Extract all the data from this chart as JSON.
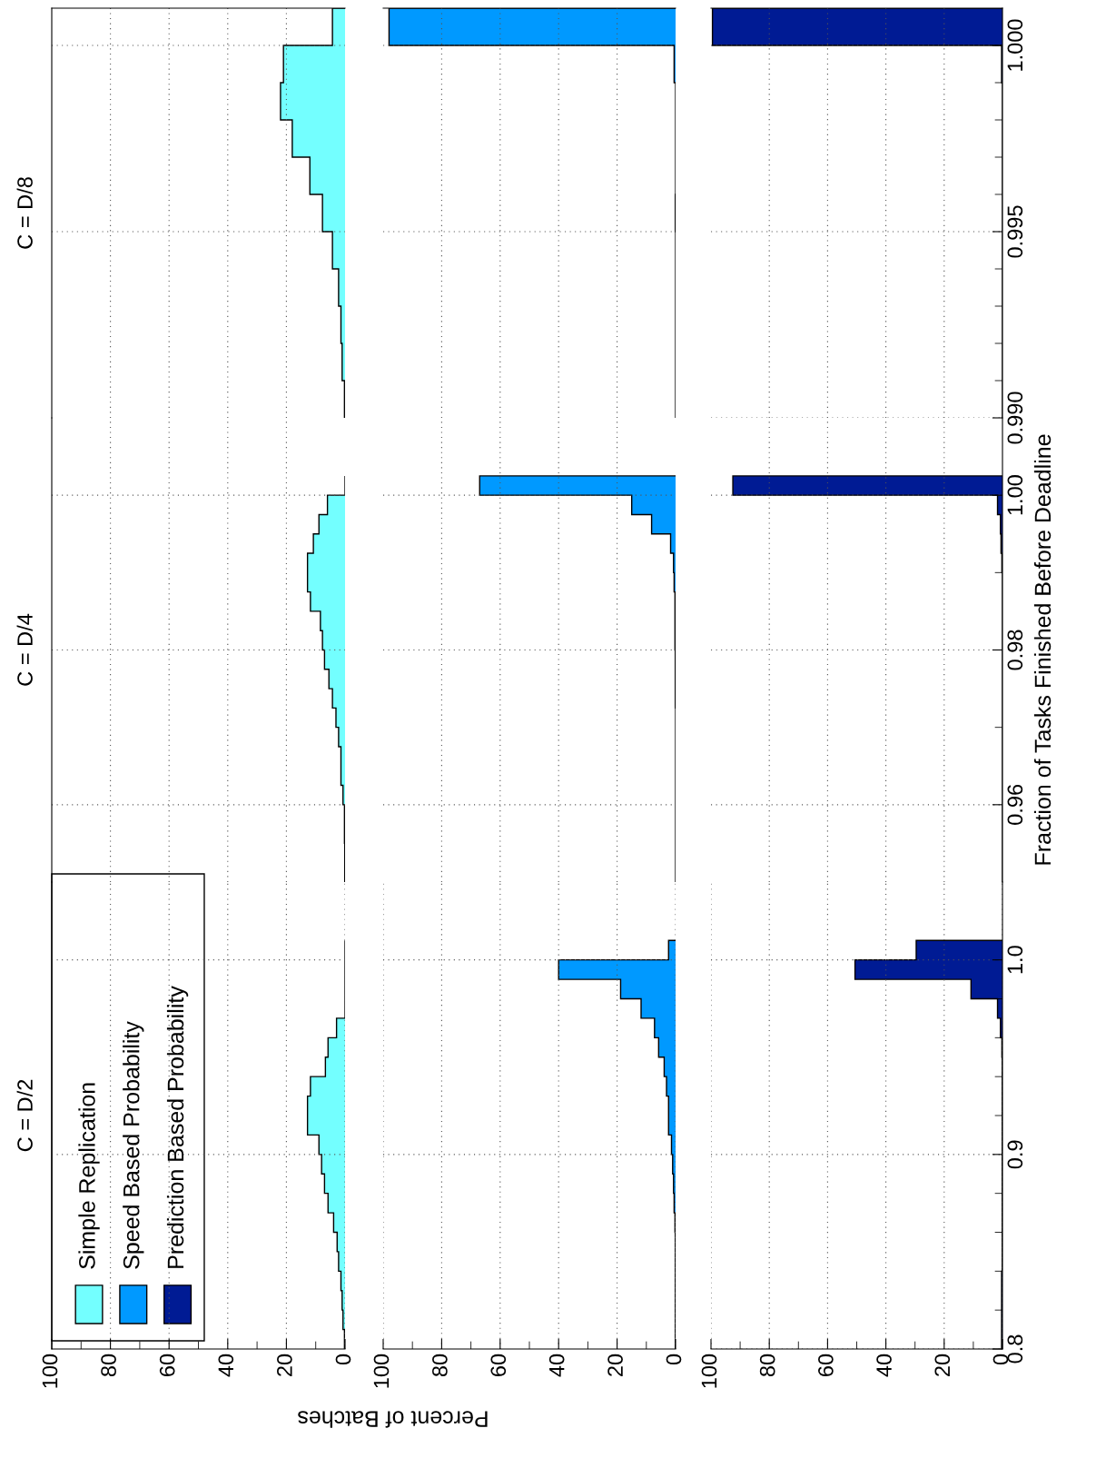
{
  "chart_data": [
    {
      "type": "histogram",
      "orientation": "horizontal",
      "title": "C = D/8",
      "bins": [
        0.99,
        0.991,
        0.992,
        0.993,
        0.994,
        0.995,
        0.996,
        0.997,
        0.998,
        0.999,
        1.0,
        1.001
      ],
      "series": [
        {
          "color": "#73ffff",
          "values": [
            0.2,
            1.0,
            1.4,
            2.2,
            4.3,
            7.7,
            12,
            18,
            22,
            21,
            4.3
          ]
        }
      ],
      "ylim": [
        0.99,
        1.001
      ],
      "yticks": [
        0.995,
        1.0
      ],
      "xlim": [
        100,
        0
      ],
      "xticks": [
        80,
        60,
        40,
        20
      ],
      "grid": true,
      "tick_labels": false
    },
    {
      "type": "histogram",
      "orientation": "horizontal",
      "bins": [
        0.99,
        0.991,
        0.992,
        0.993,
        0.994,
        0.995,
        0.996,
        0.997,
        0.998,
        0.999,
        1.0,
        1.001
      ],
      "series": [
        {
          "color": "#0099ff",
          "values": [
            0,
            0,
            0,
            0,
            0,
            0.1,
            0,
            0,
            0,
            0.5,
            98
          ]
        }
      ],
      "ylim": [
        0.99,
        1.001
      ],
      "yticks": [
        0.995,
        1.0
      ],
      "xlim": [
        100,
        0
      ],
      "xticks": [
        80,
        60,
        40,
        20
      ],
      "grid": true,
      "tick_labels": false
    },
    {
      "type": "histogram",
      "orientation": "horizontal",
      "bins": [
        0.99,
        0.991,
        0.992,
        0.993,
        0.994,
        0.995,
        0.996,
        0.997,
        0.998,
        0.999,
        1.0,
        1.001
      ],
      "series": [
        {
          "color": "#001b94",
          "values": [
            0,
            0,
            0,
            0,
            0,
            0,
            0,
            0,
            0,
            0.3,
            99.5
          ]
        }
      ],
      "ylim": [
        0.99,
        1.001
      ],
      "yticks": [
        {
          "value": 0.99,
          "label": "0.990"
        },
        {
          "value": 0.991,
          "label": null
        },
        {
          "value": 0.992,
          "label": null
        },
        {
          "value": 0.993,
          "label": null
        },
        {
          "value": 0.994,
          "label": null
        },
        {
          "value": 0.995,
          "label": "0.995"
        },
        {
          "value": 0.996,
          "label": null
        },
        {
          "value": 0.997,
          "label": null
        },
        {
          "value": 0.998,
          "label": null
        },
        {
          "value": 0.999,
          "label": null
        },
        {
          "value": 1.0,
          "label": "1.000"
        }
      ],
      "xlim": [
        100,
        0
      ],
      "xticks": [
        80,
        60,
        40,
        20
      ],
      "grid": true,
      "tick_labels": "y"
    },
    {
      "type": "histogram",
      "orientation": "horizontal",
      "title": "C = D/4",
      "bins": [
        0.95,
        0.9525,
        0.955,
        0.9575,
        0.96,
        0.9625,
        0.965,
        0.9675,
        0.97,
        0.9725,
        0.975,
        0.9775,
        0.98,
        0.9825,
        0.985,
        0.9875,
        0.99,
        0.9925,
        0.995,
        0.9975,
        1.0,
        1.0025
      ],
      "series": [
        {
          "color": "#73ffff",
          "values": [
            0.1,
            0.1,
            0.2,
            0.2,
            0.7,
            1.4,
            1.4,
            2.2,
            3.1,
            4.3,
            5.5,
            7.0,
            7.7,
            8.4,
            11.8,
            12.8,
            12.8,
            10.8,
            8.9,
            6.0,
            0
          ]
        }
      ],
      "ylim": [
        0.95,
        1.01
      ],
      "yticks": [
        0.96,
        0.98,
        1.0
      ],
      "xlim": [
        100,
        0
      ],
      "xticks": [
        80,
        60,
        40,
        20
      ],
      "grid": true,
      "tick_labels": false
    },
    {
      "type": "histogram",
      "orientation": "horizontal",
      "bins": [
        0.95,
        0.9525,
        0.955,
        0.9575,
        0.96,
        0.9625,
        0.965,
        0.9675,
        0.97,
        0.9725,
        0.975,
        0.9775,
        0.98,
        0.9825,
        0.985,
        0.9875,
        0.99,
        0.9925,
        0.995,
        0.9975,
        1.0,
        1.0025
      ],
      "series": [
        {
          "color": "#0099ff",
          "values": [
            0,
            0,
            0,
            0,
            0,
            0,
            0,
            0,
            0,
            0.1,
            0.1,
            0.1,
            0.2,
            0.2,
            0.2,
            0.5,
            0.7,
            1.7,
            8.2,
            15,
            67
          ]
        }
      ],
      "ylim": [
        0.95,
        1.01
      ],
      "yticks": [
        0.96,
        0.98,
        1.0
      ],
      "xlim": [
        100,
        0
      ],
      "xticks": [
        80,
        60,
        40,
        20
      ],
      "grid": true,
      "tick_labels": false
    },
    {
      "type": "histogram",
      "orientation": "horizontal",
      "ylabel": "Fraction of Tasks Finished Before Deadline",
      "bins": [
        0.95,
        0.9525,
        0.955,
        0.9575,
        0.96,
        0.9625,
        0.965,
        0.9675,
        0.97,
        0.9725,
        0.975,
        0.9775,
        0.98,
        0.9825,
        0.985,
        0.9875,
        0.99,
        0.9925,
        0.995,
        0.9975,
        1.0,
        1.0025
      ],
      "series": [
        {
          "color": "#001b94",
          "values": [
            0,
            0,
            0,
            0,
            0,
            0,
            0,
            0,
            0,
            0,
            0,
            0,
            0,
            0,
            0,
            0,
            0.2,
            0.5,
            0.7,
            1.7,
            92.5
          ]
        }
      ],
      "ylim": [
        0.95,
        1.01
      ],
      "yticks": [
        {
          "value": 0.96,
          "label": "0.96"
        },
        {
          "value": 0.97,
          "label": null
        },
        {
          "value": 0.98,
          "label": "0.98"
        },
        {
          "value": 0.99,
          "label": null
        },
        {
          "value": 1.0,
          "label": "1.00"
        }
      ],
      "xlim": [
        100,
        0
      ],
      "xticks": [
        80,
        60,
        40,
        20
      ],
      "grid": true,
      "tick_labels": "y"
    },
    {
      "type": "histogram",
      "orientation": "horizontal",
      "title": "C = D/2",
      "bins": [
        0.8,
        0.81,
        0.82,
        0.83,
        0.84,
        0.85,
        0.86,
        0.87,
        0.88,
        0.89,
        0.9,
        0.91,
        0.92,
        0.93,
        0.94,
        0.95,
        0.96,
        0.97,
        0.98,
        0.99,
        1.0,
        1.01
      ],
      "series": [
        {
          "name": "Simple Replication",
          "color": "#73ffff",
          "values": [
            0.2,
            0.7,
            1.0,
            1.4,
            2.2,
            2.7,
            3.9,
            5.8,
            7.0,
            8.0,
            8.9,
            12.8,
            12.8,
            11.8,
            6.7,
            5.8,
            2.9,
            0,
            0,
            0,
            0
          ]
        }
      ],
      "ylim": [
        0.8,
        1.04
      ],
      "yticks": [
        0.9,
        1.0
      ],
      "xlim": [
        100,
        0
      ],
      "xticks": [
        100,
        {
          "value": 90,
          "label": null
        },
        80,
        {
          "value": 70,
          "label": null
        },
        60,
        {
          "value": 50,
          "label": null
        },
        40,
        {
          "value": 30,
          "label": null
        },
        20,
        {
          "value": 10,
          "label": null
        },
        0
      ],
      "grid": true,
      "legend": "bottom left",
      "tick_labels": "x"
    },
    {
      "type": "histogram",
      "orientation": "horizontal",
      "xlabel": "Percent of Batches",
      "bins": [
        0.8,
        0.81,
        0.82,
        0.83,
        0.84,
        0.85,
        0.86,
        0.87,
        0.88,
        0.89,
        0.9,
        0.91,
        0.92,
        0.93,
        0.94,
        0.95,
        0.96,
        0.97,
        0.98,
        0.99,
        1.0,
        1.01
      ],
      "series": [
        {
          "name": "Speed Based Probability",
          "color": "#0099ff",
          "values": [
            0.1,
            0.1,
            0.1,
            0.1,
            0.1,
            0.1,
            0.2,
            0.5,
            0.7,
            1.0,
            1.4,
            2.4,
            2.4,
            3.1,
            3.9,
            5.8,
            7.2,
            11.8,
            18.8,
            40,
            2.4
          ]
        }
      ],
      "ylim": [
        0.8,
        1.04
      ],
      "yticks": [
        0.9,
        1.0
      ],
      "xlim": [
        100,
        0
      ],
      "xticks": [
        100,
        {
          "value": 90,
          "label": null
        },
        80,
        {
          "value": 70,
          "label": null
        },
        60,
        {
          "value": 50,
          "label": null
        },
        40,
        {
          "value": 30,
          "label": null
        },
        20,
        {
          "value": 10,
          "label": null
        },
        0
      ],
      "grid": true,
      "tick_labels": "x"
    },
    {
      "type": "histogram",
      "orientation": "horizontal",
      "bins": [
        0.8,
        0.81,
        0.82,
        0.83,
        0.84,
        0.85,
        0.86,
        0.87,
        0.88,
        0.89,
        0.9,
        0.91,
        0.92,
        0.93,
        0.94,
        0.95,
        0.96,
        0.97,
        0.98,
        0.99,
        1.0,
        1.01
      ],
      "series": [
        {
          "name": "Prediction Based Probability",
          "color": "#001b94",
          "values": [
            0.3,
            0.3,
            0.3,
            0.3,
            0.1,
            0.1,
            0.1,
            0.1,
            0.1,
            0.1,
            0.1,
            0.1,
            0.1,
            0.1,
            0.1,
            0.2,
            0.7,
            1.7,
            10.8,
            50.6,
            29.6
          ]
        }
      ],
      "ylim": [
        0.8,
        1.04
      ],
      "yticks": [
        0.8,
        {
          "value": 0.82,
          "label": null
        },
        {
          "value": 0.84,
          "label": null
        },
        {
          "value": 0.86,
          "label": null
        },
        {
          "value": 0.88,
          "label": null
        },
        0.9,
        {
          "value": 0.92,
          "label": null
        },
        {
          "value": 0.94,
          "label": null
        },
        {
          "value": 0.96,
          "label": null
        },
        {
          "value": 0.98,
          "label": null
        },
        {
          "value": 1.0,
          "label": "1.0"
        }
      ],
      "xlim": [
        100,
        0
      ],
      "xticks": [
        100,
        {
          "value": 90,
          "label": null
        },
        80,
        {
          "value": 70,
          "label": null
        },
        60,
        {
          "value": 50,
          "label": null
        },
        40,
        {
          "value": 30,
          "label": null
        },
        20,
        {
          "value": 10,
          "label": null
        },
        0
      ],
      "grid": true
    }
  ]
}
